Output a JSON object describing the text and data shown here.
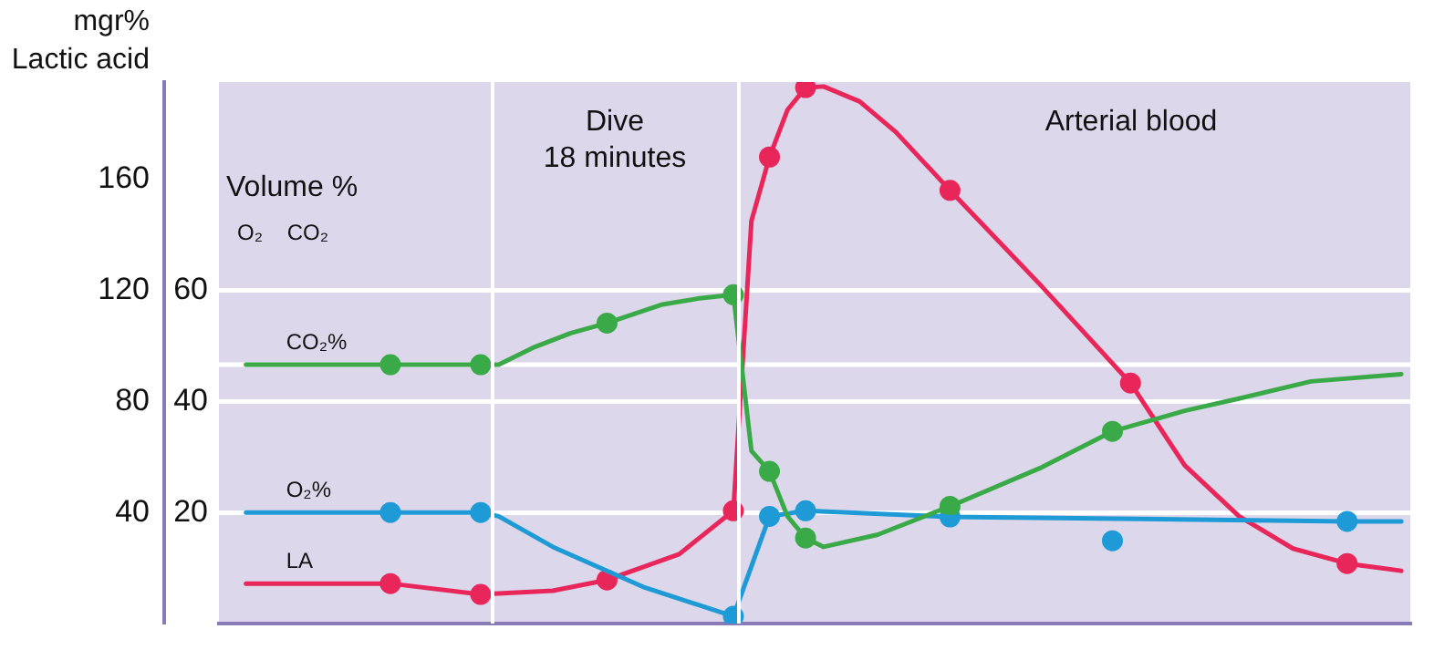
{
  "chart_data": {
    "type": "line",
    "ylabel": "mgr%\nLactic acid",
    "y2label": "Volume %",
    "annotations": [
      "O₂    CO₂",
      "Dive\n18 minutes",
      "Arterial blood"
    ],
    "categories": [
      null,
      null,
      null,
      null,
      null,
      null,
      null,
      null,
      null,
      null,
      null,
      null,
      null,
      null,
      null,
      null,
      null,
      null,
      null,
      null,
      null,
      null,
      null,
      null,
      null,
      null,
      null,
      null,
      null,
      null,
      null,
      null,
      null,
      null,
      null,
      null,
      null,
      null,
      null,
      null,
      null,
      null,
      null,
      null,
      null,
      null,
      null,
      null,
      null,
      null,
      null,
      null,
      null,
      null,
      null,
      null,
      null,
      null,
      null,
      null,
      null,
      null,
      null,
      null,
      null,
      null
    ],
    "ylim": [
      0,
      195
    ],
    "yticks": [
      40,
      80,
      120,
      160
    ],
    "y2lim": [
      0,
      97.5
    ],
    "y2ticks": [
      20,
      40,
      60
    ],
    "tick_labels": "y",
    "grid": "y",
    "legend": false,
    "ref_lines": [
      {
        "axis": "y2",
        "value": 46.6,
        "color": "#ffffff"
      }
    ],
    "series": [
      {
        "name": "CO₂%",
        "marker": "none",
        "axis": "y2",
        "color": "#3aaa48",
        "values": [
          null,
          46.6,
          null,
          null,
          null,
          null,
          null,
          null,
          null,
          46.6,
          null,
          null,
          null,
          null,
          46.6,
          46.6,
          null,
          49.8,
          null,
          52.3,
          null,
          54.1,
          null,
          null,
          57.4,
          null,
          58.5,
          null,
          59.2,
          31.1,
          27.4,
          19.3,
          15.4,
          13.8,
          null,
          null,
          16,
          null,
          null,
          null,
          21.1,
          null,
          null,
          null,
          null,
          28,
          null,
          null,
          null,
          34.6,
          null,
          null,
          null,
          38.3,
          null,
          null,
          40.5,
          null,
          null,
          null,
          43.6,
          null,
          null,
          null,
          null,
          44.9
        ]
      },
      {
        "name": "O₂%",
        "marker": "none",
        "axis": "y2",
        "color": "#1e9ad6",
        "values": [
          null,
          20,
          null,
          null,
          null,
          null,
          null,
          null,
          null,
          20,
          null,
          null,
          null,
          null,
          20,
          19.3,
          null,
          null,
          13.8,
          null,
          null,
          null,
          null,
          6.6,
          null,
          null,
          null,
          null,
          1.3,
          null,
          19.3,
          null,
          20.3,
          null,
          null,
          null,
          null,
          null,
          null,
          null,
          19.2,
          null,
          null,
          null,
          null,
          null,
          null,
          null,
          null,
          null,
          null,
          null,
          null,
          null,
          null,
          null,
          null,
          null,
          null,
          null,
          null,
          null,
          18.4,
          null,
          null,
          18.4
        ]
      },
      {
        "name": "LA",
        "marker": "none",
        "axis": "y",
        "color": "#e8265a",
        "values": [
          null,
          14.4,
          null,
          null,
          null,
          null,
          null,
          null,
          null,
          14.4,
          null,
          null,
          null,
          null,
          10.5,
          null,
          null,
          null,
          11.8,
          null,
          null,
          15.7,
          null,
          null,
          null,
          25,
          null,
          null,
          40.6,
          145,
          168,
          185,
          193,
          193.4,
          null,
          188,
          null,
          177,
          null,
          null,
          156,
          null,
          null,
          null,
          null,
          122,
          null,
          null,
          null,
          null,
          86.6,
          null,
          null,
          57,
          null,
          null,
          38.7,
          null,
          null,
          27,
          null,
          null,
          21.6,
          null,
          null,
          19
        ]
      },
      {
        "type": "scatter",
        "marker": "circle",
        "axis": "y2",
        "color": "#3aaa48",
        "values": [
          null,
          null,
          null,
          null,
          null,
          null,
          null,
          null,
          null,
          46.6,
          null,
          null,
          null,
          null,
          46.6,
          null,
          null,
          null,
          null,
          null,
          null,
          54.1,
          null,
          null,
          null,
          null,
          null,
          null,
          59.2,
          null,
          27.4,
          null,
          15.4,
          null,
          null,
          null,
          null,
          null,
          null,
          null,
          21.1,
          null,
          null,
          null,
          null,
          null,
          null,
          null,
          null,
          34.6,
          null,
          null,
          null,
          null,
          null,
          null,
          null,
          null,
          null,
          null,
          null,
          null,
          null,
          null,
          null,
          null
        ]
      },
      {
        "type": "scatter",
        "marker": "circle",
        "axis": "y2",
        "color": "#1e9ad6",
        "values": [
          null,
          null,
          null,
          null,
          null,
          null,
          null,
          null,
          null,
          20,
          null,
          null,
          null,
          null,
          20,
          null,
          null,
          null,
          null,
          null,
          null,
          null,
          null,
          null,
          null,
          null,
          null,
          null,
          1.3,
          null,
          19.3,
          null,
          20.3,
          null,
          null,
          null,
          null,
          null,
          null,
          null,
          19.2,
          null,
          null,
          null,
          null,
          null,
          null,
          null,
          null,
          14.9,
          null,
          null,
          null,
          null,
          null,
          null,
          null,
          null,
          null,
          null,
          null,
          null,
          18.4,
          null,
          null,
          null
        ]
      },
      {
        "type": "scatter",
        "marker": "circle",
        "axis": "y",
        "color": "#e8265a",
        "values": [
          null,
          null,
          null,
          null,
          null,
          null,
          null,
          null,
          null,
          14.4,
          null,
          null,
          null,
          null,
          10.5,
          null,
          null,
          null,
          null,
          null,
          null,
          15.7,
          null,
          null,
          null,
          null,
          null,
          null,
          40.6,
          null,
          168,
          null,
          193,
          null,
          null,
          null,
          null,
          null,
          null,
          null,
          156,
          null,
          null,
          null,
          null,
          null,
          null,
          null,
          null,
          null,
          86.6,
          null,
          null,
          null,
          null,
          null,
          null,
          null,
          null,
          null,
          null,
          null,
          21.6,
          null,
          null,
          null
        ]
      }
    ]
  }
}
